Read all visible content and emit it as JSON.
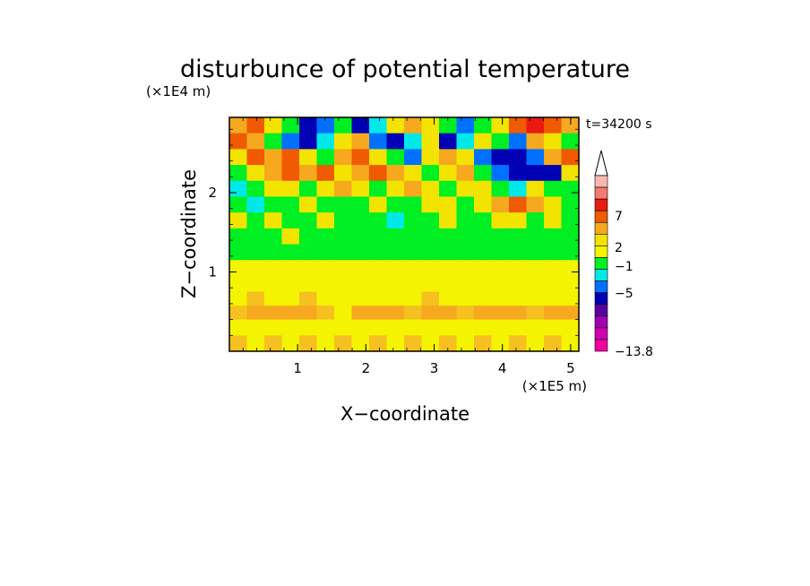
{
  "chart_data": {
    "type": "heatmap",
    "title": "disturbunce of potential temperature",
    "time_label": "t=34200 s",
    "xlabel": "X−coordinate",
    "ylabel": "Z−coordinate",
    "x_scale_label": "(×1E5 m)",
    "y_scale_label": "(×1E4 m)",
    "xlim": [
      0,
      5.12
    ],
    "ylim": [
      0,
      2.95
    ],
    "x_ticks": [
      {
        "value": 1,
        "label": "1"
      },
      {
        "value": 2,
        "label": "2"
      },
      {
        "value": 3,
        "label": "3"
      },
      {
        "value": 4,
        "label": "4"
      },
      {
        "value": 5,
        "label": "5"
      }
    ],
    "y_ticks": [
      {
        "value": 1,
        "label": "1"
      },
      {
        "value": 2,
        "label": "2"
      }
    ],
    "colorbar": {
      "ticks": [
        "7",
        "2",
        "−1",
        "−5",
        "−13.8"
      ],
      "colors": [
        "#f7b8b0",
        "#f37a6c",
        "#e81a12",
        "#f05a00",
        "#f6a91e",
        "#f2e400",
        "#f4f400",
        "#00ef22",
        "#00e8e8",
        "#0070ff",
        "#0000b4",
        "#5a00a0",
        "#a000b0",
        "#d000b0",
        "#f000a0"
      ],
      "top_arrow_color": "#ffffff"
    },
    "field_rows": [
      {
        "z": 2.85,
        "colors": [
          "#f6a91e",
          "#f05a00",
          "#f2e400",
          "#00ef22",
          "#0000b4",
          "#0070ff",
          "#00ef22",
          "#0000b4",
          "#00e8e8",
          "#f2e400",
          "#f6a91e",
          "#f2e400",
          "#00ef22",
          "#0070ff",
          "#00ef22",
          "#f2e400",
          "#f05a00",
          "#e81a12",
          "#f05a00",
          "#f6a91e"
        ]
      },
      {
        "z": 2.65,
        "colors": [
          "#f05a00",
          "#f6a91e",
          "#00ef22",
          "#0070ff",
          "#0000b4",
          "#00e8e8",
          "#f2e400",
          "#f6a91e",
          "#0070ff",
          "#0000b4",
          "#00e8e8",
          "#f2e400",
          "#0000b4",
          "#00e8e8",
          "#f2e400",
          "#00ef22",
          "#0070ff",
          "#f6a91e",
          "#f2e400",
          "#00ef22"
        ]
      },
      {
        "z": 2.45,
        "colors": [
          "#f2e400",
          "#f05a00",
          "#f6a91e",
          "#f05a00",
          "#f2e400",
          "#00ef22",
          "#f6a91e",
          "#f05a00",
          "#f2e400",
          "#00ef22",
          "#0070ff",
          "#f2e400",
          "#f6a91e",
          "#f2e400",
          "#0070ff",
          "#0000b4",
          "#0000b4",
          "#0070ff",
          "#f6a91e",
          "#f05a00"
        ]
      },
      {
        "z": 2.25,
        "colors": [
          "#00ef22",
          "#f2e400",
          "#f6a91e",
          "#f05a00",
          "#f6a91e",
          "#f05a00",
          "#f2e400",
          "#f6a91e",
          "#f05a00",
          "#f6a91e",
          "#f2e400",
          "#00ef22",
          "#f2e400",
          "#f6a91e",
          "#00ef22",
          "#0070ff",
          "#0000b4",
          "#0000b4",
          "#0000b4",
          "#f2e400"
        ]
      },
      {
        "z": 2.05,
        "colors": [
          "#00e8e8",
          "#00ef22",
          "#f2e400",
          "#f2e400",
          "#00ef22",
          "#f2e400",
          "#f6a91e",
          "#f2e400",
          "#00ef22",
          "#f2e400",
          "#f6a91e",
          "#f2e400",
          "#00ef22",
          "#f2e400",
          "#f2e400",
          "#00ef22",
          "#00e8e8",
          "#f2e400",
          "#00ef22",
          "#00ef22"
        ]
      },
      {
        "z": 1.85,
        "colors": [
          "#00ef22",
          "#00e8e8",
          "#00ef22",
          "#00ef22",
          "#f2e400",
          "#00ef22",
          "#00ef22",
          "#00ef22",
          "#f2e400",
          "#00ef22",
          "#00ef22",
          "#f2e400",
          "#f2e400",
          "#00ef22",
          "#f2e400",
          "#f6a91e",
          "#f05a00",
          "#f6a91e",
          "#f2e400",
          "#00ef22"
        ]
      },
      {
        "z": 1.65,
        "colors": [
          "#f2e400",
          "#00ef22",
          "#f2e400",
          "#00ef22",
          "#00ef22",
          "#f2e400",
          "#00ef22",
          "#00ef22",
          "#00ef22",
          "#00e8e8",
          "#00ef22",
          "#00ef22",
          "#f2e400",
          "#00ef22",
          "#00ef22",
          "#f2e400",
          "#f2e400",
          "#00ef22",
          "#f2e400",
          "#00ef22"
        ]
      },
      {
        "z": 1.45,
        "colors": [
          "#00ef22",
          "#00ef22",
          "#00ef22",
          "#f2e400",
          "#00ef22",
          "#00ef22",
          "#00ef22",
          "#00ef22",
          "#00ef22",
          "#00ef22",
          "#00ef22",
          "#00ef22",
          "#00ef22",
          "#00ef22",
          "#00ef22",
          "#00ef22",
          "#00ef22",
          "#00ef22",
          "#00ef22",
          "#00ef22"
        ]
      },
      {
        "z": 1.25,
        "colors": [
          "#00ef22",
          "#00ef22",
          "#00ef22",
          "#00ef22",
          "#00ef22",
          "#00ef22",
          "#00ef22",
          "#00ef22",
          "#00ef22",
          "#00ef22",
          "#00ef22",
          "#00ef22",
          "#00ef22",
          "#00ef22",
          "#00ef22",
          "#00ef22",
          "#00ef22",
          "#00ef22",
          "#00ef22",
          "#00ef22"
        ]
      },
      {
        "z": 1.05,
        "colors": [
          "#f4f400",
          "#f4f400",
          "#f4f400",
          "#f4f400",
          "#f4f400",
          "#f4f400",
          "#f4f400",
          "#f4f400",
          "#f4f400",
          "#f4f400",
          "#f4f400",
          "#f4f400",
          "#f4f400",
          "#f4f400",
          "#f4f400",
          "#f4f400",
          "#f4f400",
          "#f4f400",
          "#f4f400",
          "#f4f400"
        ]
      },
      {
        "z": 0.85,
        "colors": [
          "#f4f400",
          "#f4f400",
          "#f4f400",
          "#f4f400",
          "#f4f400",
          "#f4f400",
          "#f4f400",
          "#f4f400",
          "#f4f400",
          "#f4f400",
          "#f4f400",
          "#f4f400",
          "#f4f400",
          "#f4f400",
          "#f4f400",
          "#f4f400",
          "#f4f400",
          "#f4f400",
          "#f4f400",
          "#f4f400"
        ]
      },
      {
        "z": 0.65,
        "colors": [
          "#f4f400",
          "#f6c020",
          "#f4f400",
          "#f4f400",
          "#f6c020",
          "#f4f400",
          "#f4f400",
          "#f4f400",
          "#f4f400",
          "#f4f400",
          "#f4f400",
          "#f6c020",
          "#f4f400",
          "#f4f400",
          "#f4f400",
          "#f4f400",
          "#f4f400",
          "#f4f400",
          "#f4f400",
          "#f4f400"
        ]
      },
      {
        "z": 0.5,
        "colors": [
          "#f6c020",
          "#f6a91e",
          "#f6a91e",
          "#f6a91e",
          "#f6a91e",
          "#f6c020",
          "#f4f400",
          "#f6a91e",
          "#f6a91e",
          "#f6a91e",
          "#f6c020",
          "#f6a91e",
          "#f6a91e",
          "#f6c020",
          "#f6a91e",
          "#f6a91e",
          "#f6a91e",
          "#f6c020",
          "#f6a91e",
          "#f6a91e"
        ]
      },
      {
        "z": 0.3,
        "colors": [
          "#f4f400",
          "#f4f400",
          "#f4f400",
          "#f4f400",
          "#f4f400",
          "#f4f400",
          "#f4f400",
          "#f4f400",
          "#f4f400",
          "#f4f400",
          "#f4f400",
          "#f4f400",
          "#f4f400",
          "#f4f400",
          "#f4f400",
          "#f4f400",
          "#f4f400",
          "#f4f400",
          "#f4f400",
          "#f4f400"
        ]
      },
      {
        "z": 0.1,
        "colors": [
          "#f6c020",
          "#f4f400",
          "#f6c020",
          "#f4f400",
          "#f6c020",
          "#f4f400",
          "#f6c020",
          "#f4f400",
          "#f6c020",
          "#f4f400",
          "#f6c020",
          "#f4f400",
          "#f6c020",
          "#f4f400",
          "#f6c020",
          "#f4f400",
          "#f6c020",
          "#f4f400",
          "#f6c020",
          "#f4f400"
        ]
      }
    ],
    "grid": false
  }
}
